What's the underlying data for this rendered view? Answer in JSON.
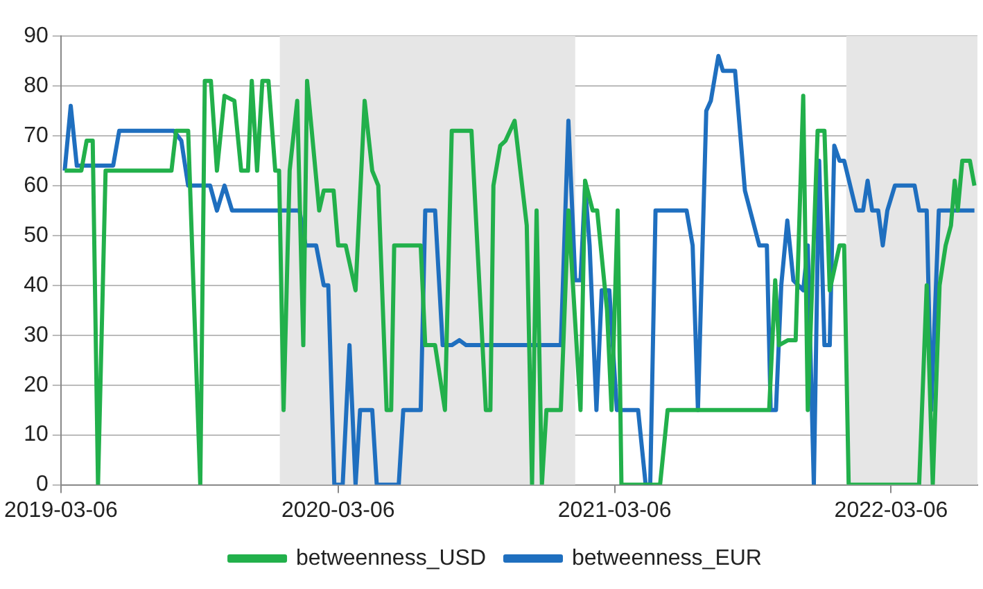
{
  "chart_data": {
    "type": "line",
    "xlim": [
      "2019-03-06",
      "2022-06-28"
    ],
    "xticks": [
      "2019-03-06",
      "2020-03-06",
      "2021-03-06",
      "2022-03-06"
    ],
    "ylim": [
      0,
      90
    ],
    "yticks": [
      0,
      10,
      20,
      30,
      40,
      50,
      60,
      70,
      80,
      90
    ],
    "grid": "y",
    "legend": "bottom",
    "marker": "none",
    "line_style": "solid",
    "bands": [
      {
        "axis": "x",
        "from": "2019-12-20",
        "to": "2021-01-13",
        "color": "#e6e6e6"
      },
      {
        "axis": "x",
        "from": "2022-01-06",
        "to": "2022-06-28",
        "color": "#e6e6e6"
      }
    ],
    "series": [
      {
        "name": "betweenness_USD",
        "color": "#22b04b",
        "x": [
          "2019-03-11",
          "2019-04-02",
          "2019-04-09",
          "2019-04-17",
          "2019-04-24",
          "2019-05-04",
          "2019-07-30",
          "2019-08-05",
          "2019-08-21",
          "2019-09-06",
          "2019-09-12",
          "2019-09-20",
          "2019-09-28",
          "2019-10-08",
          "2019-10-21",
          "2019-10-30",
          "2019-11-08",
          "2019-11-13",
          "2019-11-20",
          "2019-11-27",
          "2019-12-05",
          "2019-12-14",
          "2019-12-19",
          "2019-12-25",
          "2020-01-02",
          "2020-01-12",
          "2020-01-20",
          "2020-01-25",
          "2020-02-10",
          "2020-02-16",
          "2020-02-29",
          "2020-03-06",
          "2020-03-16",
          "2020-03-29",
          "2020-04-10",
          "2020-04-20",
          "2020-04-28",
          "2020-05-09",
          "2020-05-15",
          "2020-05-19",
          "2020-06-23",
          "2020-06-29",
          "2020-07-12",
          "2020-07-25",
          "2020-08-03",
          "2020-08-29",
          "2020-09-17",
          "2020-09-23",
          "2020-09-27",
          "2020-10-06",
          "2020-10-13",
          "2020-10-25",
          "2020-11-10",
          "2020-11-17",
          "2020-11-23",
          "2020-11-30",
          "2020-12-06",
          "2020-12-25",
          "2021-01-04",
          "2021-01-10",
          "2021-01-20",
          "2021-01-26",
          "2021-02-05",
          "2021-02-11",
          "2021-02-24",
          "2021-03-02",
          "2021-03-10",
          "2021-03-15",
          "2021-05-05",
          "2021-05-15",
          "2021-09-26",
          "2021-10-04",
          "2021-10-09",
          "2021-10-21",
          "2021-10-31",
          "2021-11-10",
          "2021-11-16",
          "2021-11-29",
          "2021-12-08",
          "2021-12-15",
          "2021-12-28",
          "2022-01-03",
          "2022-01-09",
          "2022-04-12",
          "2022-04-22",
          "2022-04-30",
          "2022-05-09",
          "2022-05-17",
          "2022-05-24",
          "2022-05-29",
          "2022-06-02",
          "2022-06-08",
          "2022-06-18",
          "2022-06-24"
        ],
        "values": [
          63,
          63,
          69,
          69,
          0,
          63,
          63,
          71,
          71,
          0,
          81,
          81,
          63,
          78,
          77,
          63,
          63,
          81,
          63,
          81,
          81,
          63,
          63,
          15,
          63,
          77,
          28,
          81,
          55,
          59,
          59,
          48,
          48,
          39,
          77,
          63,
          60,
          15,
          15,
          48,
          48,
          28,
          28,
          15,
          71,
          71,
          15,
          15,
          60,
          68,
          69,
          73,
          52,
          0,
          55,
          0,
          15,
          15,
          55,
          40,
          15,
          61,
          55,
          55,
          35,
          15,
          55,
          0,
          0,
          15,
          15,
          41,
          28,
          29,
          29,
          78,
          15,
          71,
          71,
          39,
          48,
          48,
          0,
          0,
          40,
          0,
          40,
          48,
          52,
          61,
          55,
          65,
          65,
          60
        ]
      },
      {
        "name": "betweenness_EUR",
        "color": "#1f6fbf",
        "x": [
          "2019-03-11",
          "2019-03-19",
          "2019-03-27",
          "2019-05-14",
          "2019-05-22",
          "2019-08-02",
          "2019-08-12",
          "2019-08-21",
          "2019-09-19",
          "2019-09-28",
          "2019-10-08",
          "2019-10-18",
          "2020-01-15",
          "2020-01-23",
          "2020-02-06",
          "2020-02-16",
          "2020-02-22",
          "2020-03-01",
          "2020-03-12",
          "2020-03-21",
          "2020-03-29",
          "2020-04-04",
          "2020-04-20",
          "2020-04-26",
          "2020-05-25",
          "2020-05-31",
          "2020-06-23",
          "2020-06-29",
          "2020-07-12",
          "2020-07-22",
          "2020-08-03",
          "2020-08-13",
          "2020-08-22",
          "2020-12-25",
          "2021-01-04",
          "2021-01-13",
          "2021-01-20",
          "2021-01-26",
          "2021-02-01",
          "2021-02-10",
          "2021-02-17",
          "2021-02-27",
          "2021-03-09",
          "2021-04-06",
          "2021-04-16",
          "2021-04-22",
          "2021-04-29",
          "2021-06-09",
          "2021-06-17",
          "2021-06-24",
          "2021-07-05",
          "2021-07-11",
          "2021-07-21",
          "2021-07-27",
          "2021-08-12",
          "2021-08-25",
          "2021-09-13",
          "2021-09-23",
          "2021-09-28",
          "2021-10-05",
          "2021-10-12",
          "2021-10-20",
          "2021-10-28",
          "2021-11-10",
          "2021-11-16",
          "2021-11-24",
          "2021-12-01",
          "2021-12-08",
          "2021-12-15",
          "2021-12-21",
          "2021-12-28",
          "2022-01-03",
          "2022-01-19",
          "2022-01-28",
          "2022-02-03",
          "2022-02-09",
          "2022-02-17",
          "2022-02-23",
          "2022-03-01",
          "2022-03-11",
          "2022-04-06",
          "2022-04-12",
          "2022-04-22",
          "2022-04-28",
          "2022-05-08",
          "2022-06-24"
        ],
        "values": [
          63,
          76,
          64,
          64,
          71,
          71,
          69,
          60,
          60,
          55,
          60,
          55,
          55,
          48,
          48,
          40,
          40,
          0,
          0,
          28,
          0,
          15,
          15,
          0,
          0,
          15,
          15,
          55,
          55,
          28,
          28,
          29,
          28,
          28,
          73,
          41,
          41,
          60,
          48,
          15,
          39,
          39,
          15,
          15,
          0,
          0,
          55,
          55,
          48,
          15,
          75,
          77,
          86,
          83,
          83,
          59,
          48,
          48,
          15,
          15,
          40,
          53,
          41,
          39,
          48,
          0,
          65,
          28,
          28,
          68,
          65,
          65,
          55,
          55,
          61,
          55,
          55,
          48,
          55,
          60,
          60,
          55,
          55,
          15,
          55,
          55
        ]
      }
    ]
  }
}
